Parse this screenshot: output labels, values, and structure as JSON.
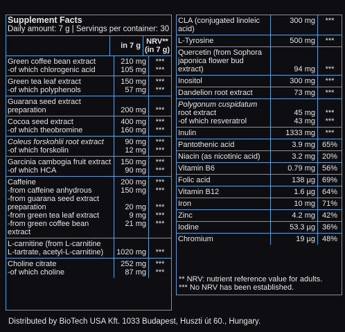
{
  "title": "Supplement Facts",
  "serving": "Daily amount: 7 g | Servings per container: 30",
  "header": {
    "col1": "",
    "col2": "in 7 g",
    "col3a": "NRV**",
    "col3b": "(in 7 g)"
  },
  "left_rows": [
    {
      "n": [
        "Green coffee bean extract",
        "-of which chlorogenic acid"
      ],
      "v": [
        "210 mg",
        "105 mg"
      ],
      "r": [
        "***",
        "***"
      ]
    },
    {
      "n": [
        "Green tea leaf extract",
        "-of which polyphenols"
      ],
      "v": [
        "150 mg",
        "57 mg"
      ],
      "r": [
        "***",
        "***"
      ]
    },
    {
      "n": [
        "Guarana seed extract",
        "preparation"
      ],
      "v": [
        "200 mg"
      ],
      "r": [
        "***"
      ]
    },
    {
      "n": [
        "Cocoa seed extract",
        "-of which theobromine"
      ],
      "v": [
        "400 mg",
        "160 mg"
      ],
      "r": [
        "***",
        "***"
      ]
    },
    {
      "n": [
        "Coleus forskohlii root extract",
        "-of which forskolin"
      ],
      "v": [
        "90 mg",
        "12 mg"
      ],
      "r": [
        "***",
        "***"
      ]
    },
    {
      "n": [
        "Garcinia cambogia fruit extract",
        "-of which HCA"
      ],
      "v": [
        "150 mg",
        "90 mg"
      ],
      "r": [
        "***",
        "***"
      ]
    },
    {
      "n": [
        "Caffeine",
        "-from caffeine anhydrous",
        "-from guarana seed extract",
        "preparation",
        "-from green tea leaf extract",
        "-from green coffee bean extract"
      ],
      "v": [
        "200 mg",
        "150 mg",
        "",
        "20 mg",
        "9 mg",
        "21 mg"
      ],
      "r": [
        "***",
        "***",
        "",
        "***",
        "***",
        "***"
      ]
    },
    {
      "n": [
        "L-carnitine (from L-carnitine",
        "L-tartrate, acetyl-L-carnitine)"
      ],
      "v": [
        "1020 mg"
      ],
      "r": [
        "***"
      ]
    },
    {
      "n": [
        "Choline citrate",
        "-of which choline"
      ],
      "v": [
        "252 mg",
        "87 mg"
      ],
      "r": [
        "***",
        "***"
      ]
    }
  ],
  "right_rows": [
    {
      "n": [
        "CLA (conjugated linoleic acid)"
      ],
      "v": [
        "300 mg"
      ],
      "r": [
        "***"
      ]
    },
    {
      "n": [
        "L-Tyrosine"
      ],
      "v": [
        "500 mg"
      ],
      "r": [
        "***"
      ]
    },
    {
      "n": [
        "Quercetin (from Sophora",
        "japonica flower bud extract)"
      ],
      "v": [
        "94 mg"
      ],
      "r": [
        "***"
      ]
    },
    {
      "n": [
        "Inositol"
      ],
      "v": [
        "300 mg"
      ],
      "r": [
        "***"
      ]
    },
    {
      "n": [
        "Dandelion root extract"
      ],
      "v": [
        "73 mg"
      ],
      "r": [
        "***"
      ]
    },
    {
      "n": [
        "Polygonum cuspidatum",
        "root extract",
        "-of which resveratrol"
      ],
      "v": [
        "45 mg",
        "43 mg"
      ],
      "r": [
        "***",
        "***"
      ]
    },
    {
      "n": [
        "Inulin"
      ],
      "v": [
        "1333 mg"
      ],
      "r": [
        "***"
      ]
    },
    {
      "n": [
        "Pantothenic acid"
      ],
      "v": [
        "3.9 mg"
      ],
      "r": [
        "65%"
      ]
    },
    {
      "n": [
        "Niacin (as nicotinic acid)"
      ],
      "v": [
        "3.2 mg"
      ],
      "r": [
        "20%"
      ]
    },
    {
      "n": [
        "Vitamin B6"
      ],
      "v": [
        "0.79 mg"
      ],
      "r": [
        "56%"
      ]
    },
    {
      "n": [
        "Folic acid"
      ],
      "v": [
        "138 µg"
      ],
      "r": [
        "69%"
      ]
    },
    {
      "n": [
        "Vitamin B12"
      ],
      "v": [
        "1.6 µg"
      ],
      "r": [
        "64%"
      ]
    },
    {
      "n": [
        "Iron"
      ],
      "v": [
        "10 mg"
      ],
      "r": [
        "71%"
      ]
    },
    {
      "n": [
        "Zinc"
      ],
      "v": [
        "4.2 mg"
      ],
      "r": [
        "42%"
      ]
    },
    {
      "n": [
        "Iodine"
      ],
      "v": [
        "53.3 µg"
      ],
      "r": [
        "36%"
      ]
    },
    {
      "n": [
        "Chromium"
      ],
      "v": [
        "19 µg"
      ],
      "r": [
        "48%"
      ]
    }
  ],
  "notes": [
    "** NRV: nutrient reference value for adults.",
    "*** No NRV has been established."
  ],
  "footer": "Distributed by BioTech USA Kft. 1033 Budapest, Huszti út 60., Hungary.",
  "colors": {
    "background": "#0d0d12",
    "border": "#5a9ed0",
    "text": "#e6e6e6"
  }
}
